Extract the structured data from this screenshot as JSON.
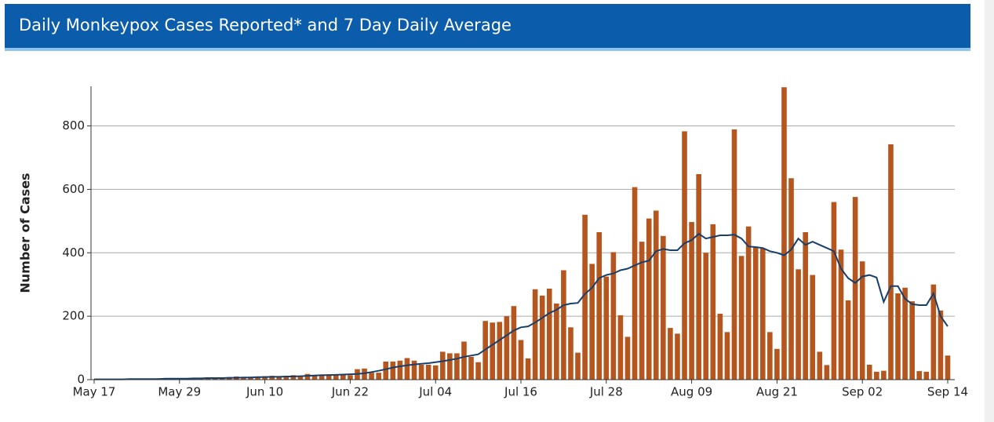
{
  "chart_data": {
    "type": "bar",
    "title": "Daily Monkeypox Cases Reported* and 7 Day Daily Average",
    "y_label": "Number of Cases",
    "categories": [
      "May 17",
      null,
      null,
      null,
      null,
      null,
      null,
      null,
      null,
      null,
      null,
      null,
      "May 29",
      null,
      null,
      null,
      null,
      null,
      null,
      null,
      null,
      null,
      null,
      null,
      "Jun 10",
      null,
      null,
      null,
      null,
      null,
      null,
      null,
      null,
      null,
      null,
      null,
      "Jun 22",
      null,
      null,
      null,
      null,
      null,
      null,
      null,
      null,
      null,
      null,
      null,
      "Jul 04",
      null,
      null,
      null,
      null,
      null,
      null,
      null,
      null,
      null,
      null,
      null,
      "Jul 16",
      null,
      null,
      null,
      null,
      null,
      null,
      null,
      null,
      null,
      null,
      null,
      "Jul 28",
      null,
      null,
      null,
      null,
      null,
      null,
      null,
      null,
      null,
      null,
      null,
      "Aug 09",
      null,
      null,
      null,
      null,
      null,
      null,
      null,
      null,
      null,
      null,
      null,
      "Aug 21",
      null,
      null,
      null,
      null,
      null,
      null,
      null,
      null,
      null,
      null,
      null,
      "Sep 02",
      null,
      null,
      null,
      null,
      null,
      null,
      null,
      null,
      null,
      null,
      null,
      "Sep 14"
    ],
    "series": [
      {
        "type": "bar",
        "color": "#b5561f",
        "values": [
          1,
          1,
          2,
          1,
          2,
          2,
          3,
          3,
          2,
          4,
          3,
          3,
          5,
          4,
          6,
          5,
          7,
          6,
          5,
          8,
          10,
          7,
          9,
          8,
          11,
          12,
          10,
          10,
          14,
          12,
          18,
          15,
          16,
          17,
          15,
          18,
          14,
          33,
          35,
          22,
          22,
          57,
          57,
          60,
          68,
          60,
          47,
          47,
          45,
          88,
          83,
          83,
          120,
          72,
          55,
          185,
          180,
          182,
          200,
          232,
          125,
          67,
          285,
          265,
          287,
          240,
          345,
          165,
          85,
          520,
          365,
          465,
          325,
          402,
          203,
          135,
          607,
          435,
          508,
          533,
          453,
          163,
          145,
          783,
          497,
          648,
          400,
          490,
          208,
          150,
          789,
          390,
          483,
          418,
          413,
          150,
          97,
          922,
          635,
          348,
          465,
          330,
          88,
          46,
          560,
          410,
          250,
          576,
          373,
          47,
          25,
          28,
          742,
          272,
          290,
          247,
          27,
          25,
          300,
          218,
          76
        ]
      },
      {
        "type": "line",
        "color": "#173f6b",
        "values": [
          1,
          1,
          1,
          1,
          1,
          2,
          2,
          2,
          2,
          2,
          3,
          3,
          3,
          3,
          4,
          4,
          5,
          5,
          5,
          6,
          6,
          7,
          7,
          8,
          8,
          9,
          9,
          10,
          10,
          11,
          12,
          13,
          14,
          14,
          15,
          16,
          17,
          18,
          20,
          24,
          28,
          33,
          38,
          42,
          45,
          48,
          50,
          52,
          55,
          58,
          62,
          66,
          72,
          76,
          80,
          95,
          110,
          125,
          140,
          155,
          165,
          168,
          180,
          195,
          210,
          220,
          235,
          240,
          242,
          270,
          290,
          320,
          330,
          335,
          345,
          350,
          360,
          370,
          375,
          405,
          412,
          408,
          408,
          430,
          440,
          460,
          445,
          450,
          455,
          455,
          457,
          445,
          420,
          418,
          415,
          405,
          400,
          392,
          410,
          445,
          425,
          435,
          425,
          415,
          405,
          350,
          320,
          305,
          325,
          330,
          322,
          245,
          295,
          295,
          255,
          238,
          235,
          235,
          272,
          200,
          168
        ]
      }
    ],
    "ylim": [
      0,
      925
    ],
    "yticks": [
      0,
      200,
      400,
      600,
      800
    ],
    "grid": true
  }
}
